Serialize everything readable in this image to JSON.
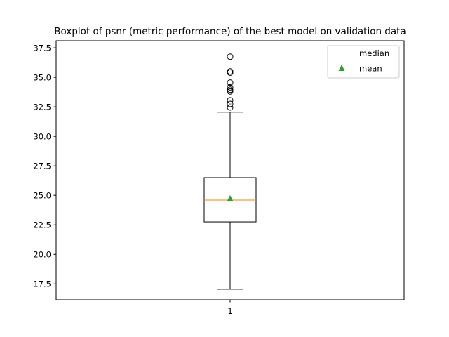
{
  "chart_data": {
    "type": "boxplot",
    "title": "Boxplot of psnr (metric performance) of the best model on validation data",
    "xlabel": "",
    "ylabel": "",
    "categories": [
      "1"
    ],
    "ylim": [
      16.15,
      38.1
    ],
    "yticks": [
      "17.5",
      "20.0",
      "22.5",
      "25.0",
      "27.5",
      "30.0",
      "32.5",
      "35.0",
      "37.5"
    ],
    "box": {
      "whisker_low": 17.05,
      "q1": 22.75,
      "median": 24.6,
      "q3": 26.5,
      "whisker_high": 32.05,
      "mean": 24.75,
      "outliers": [
        32.45,
        32.75,
        33.05,
        33.8,
        33.95,
        34.15,
        34.55,
        35.4,
        35.5,
        36.75
      ]
    },
    "legend": {
      "position": "upper-right",
      "entries": [
        {
          "label": "median",
          "color": "#ff7f0e",
          "marker": "line"
        },
        {
          "label": "mean",
          "color": "#2ca02c",
          "marker": "triangle"
        }
      ]
    },
    "colors": {
      "median": "#ff7f0e",
      "mean": "#2ca02c",
      "box": "#000000",
      "flier": "#000000"
    },
    "grid": false
  }
}
